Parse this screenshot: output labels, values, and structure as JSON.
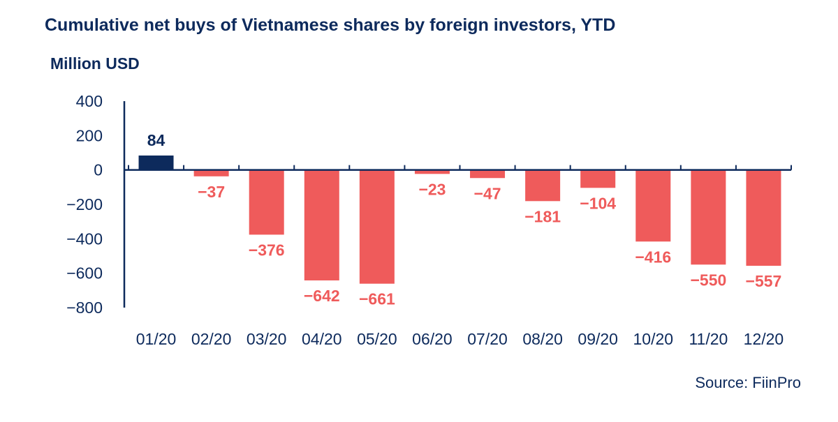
{
  "title": "Cumulative net buys of Vietnamese shares by foreign investors, YTD",
  "unit_label": "Million USD",
  "source": "Source: FiinPro",
  "colors": {
    "positive": "#0d2a5c",
    "negative": "#ef5b5b",
    "axis": "#0d2a5c",
    "text": "#0d2a5c"
  },
  "chart_data": {
    "type": "bar",
    "categories": [
      "01/20",
      "02/20",
      "03/20",
      "04/20",
      "05/20",
      "06/20",
      "07/20",
      "08/20",
      "09/20",
      "10/20",
      "11/20",
      "12/20"
    ],
    "values": [
      84,
      -37,
      -376,
      -642,
      -661,
      -23,
      -47,
      -181,
      -104,
      -416,
      -550,
      -557
    ],
    "data_labels": [
      "84",
      "-37",
      "-376",
      "-642",
      "-661",
      "-23",
      "-47",
      "-181",
      "-104",
      "-416",
      "-550",
      "-557"
    ],
    "ylim": [
      -800,
      400
    ],
    "yticks": [
      400,
      200,
      0,
      -200,
      -400,
      -600,
      -800
    ],
    "grid": false,
    "legend": "none"
  }
}
